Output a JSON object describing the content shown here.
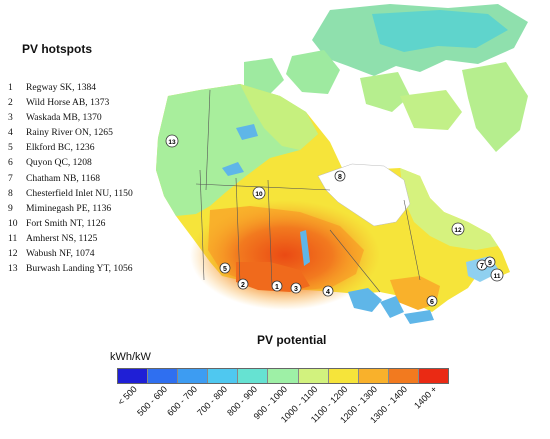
{
  "hotspots_title": "PV hotspots",
  "hotspots": [
    {
      "num": "1",
      "text": "Regway SK, 1384"
    },
    {
      "num": "2",
      "text": "Wild Horse AB, 1373"
    },
    {
      "num": "3",
      "text": "Waskada MB, 1370"
    },
    {
      "num": "4",
      "text": "Rainy River ON, 1265"
    },
    {
      "num": "5",
      "text": "Elkford BC, 1236"
    },
    {
      "num": "6",
      "text": "Quyon QC, 1208"
    },
    {
      "num": "7",
      "text": "Chatham NB, 1168"
    },
    {
      "num": "8",
      "text": "Chesterfield Inlet NU, 1150"
    },
    {
      "num": "9",
      "text": "Miminegash PE, 1136"
    },
    {
      "num": "10",
      "text": "Fort Smith NT, 1126"
    },
    {
      "num": "11",
      "text": "Amherst NS, 1125"
    },
    {
      "num": "12",
      "text": "Wabush NF, 1074"
    },
    {
      "num": "13",
      "text": "Burwash Landing YT, 1056"
    }
  ],
  "legend": {
    "title": "PV potential",
    "unit": "kWh/kW",
    "classes": [
      {
        "label": "< 500",
        "color": "#1f1fd6"
      },
      {
        "label": "500 - 600",
        "color": "#2f6ff0"
      },
      {
        "label": "600 - 700",
        "color": "#3d9cf2"
      },
      {
        "label": "700 - 800",
        "color": "#4fc8f0"
      },
      {
        "label": "800 - 900",
        "color": "#66e2d2"
      },
      {
        "label": "900 - 1000",
        "color": "#9ef0a6"
      },
      {
        "label": "1000 - 1100",
        "color": "#d2f27e"
      },
      {
        "label": "1100 - 1200",
        "color": "#f6e43a"
      },
      {
        "label": "1200 - 1300",
        "color": "#f9b12b"
      },
      {
        "label": "1300 - 1400",
        "color": "#f27a1f"
      },
      {
        "label": "1400 +",
        "color": "#ea2a14"
      }
    ]
  },
  "markers": [
    "1",
    "2",
    "3",
    "4",
    "5",
    "6",
    "7",
    "8",
    "9",
    "10",
    "11",
    "12",
    "13"
  ]
}
